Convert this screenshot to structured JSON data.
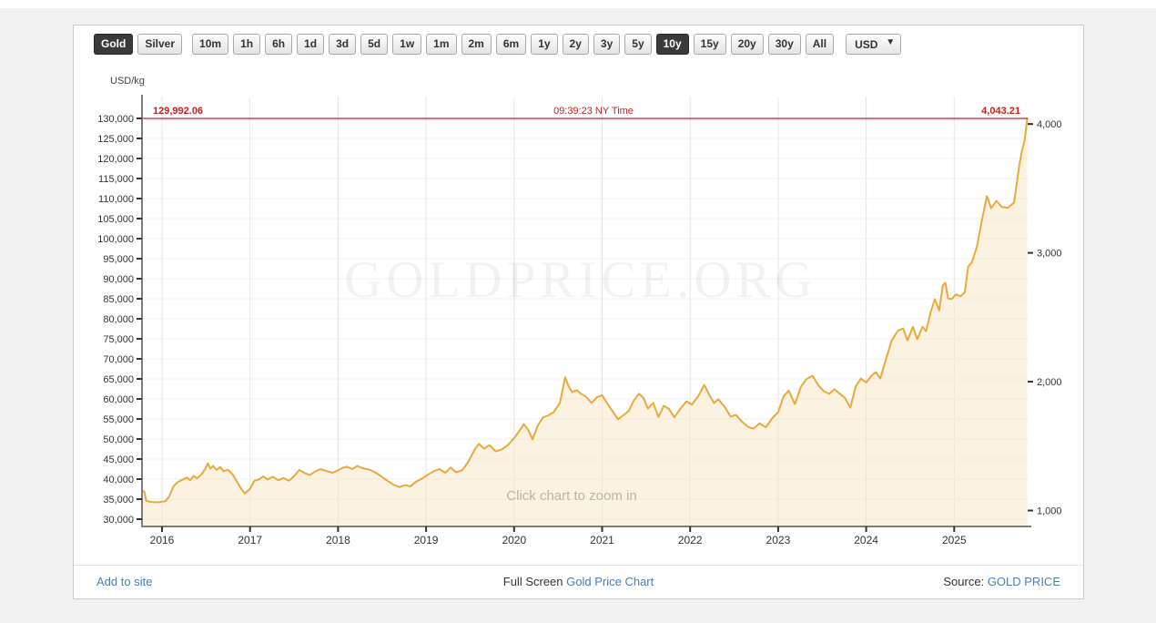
{
  "toolbar": {
    "asset_buttons": [
      {
        "label": "Gold",
        "active": true
      },
      {
        "label": "Silver",
        "active": false
      }
    ],
    "period_buttons": [
      {
        "label": "10m",
        "active": false
      },
      {
        "label": "1h",
        "active": false
      },
      {
        "label": "6h",
        "active": false
      },
      {
        "label": "1d",
        "active": false
      },
      {
        "label": "3d",
        "active": false
      },
      {
        "label": "5d",
        "active": false
      },
      {
        "label": "1w",
        "active": false
      },
      {
        "label": "1m",
        "active": false
      },
      {
        "label": "2m",
        "active": false
      },
      {
        "label": "6m",
        "active": false
      },
      {
        "label": "1y",
        "active": false
      },
      {
        "label": "2y",
        "active": false
      },
      {
        "label": "3y",
        "active": false
      },
      {
        "label": "5y",
        "active": false
      },
      {
        "label": "10y",
        "active": true
      },
      {
        "label": "15y",
        "active": false
      },
      {
        "label": "20y",
        "active": false
      },
      {
        "label": "30y",
        "active": false
      },
      {
        "label": "All",
        "active": false
      }
    ],
    "currency": {
      "selected": "USD",
      "options": [
        "USD"
      ]
    }
  },
  "chart_data": {
    "type": "area",
    "unit_label": "USD/kg",
    "watermark": "GOLDPRICE.ORG",
    "hint": "Click chart to zoom in",
    "x_axis": {
      "tick_years": [
        2016,
        2017,
        2018,
        2019,
        2020,
        2021,
        2022,
        2023,
        2024,
        2025
      ],
      "range": [
        2015.77,
        2025.84
      ]
    },
    "y_left": {
      "min": 30000,
      "max": 130000,
      "step": 5000
    },
    "y_right": {
      "ticks": [
        1000,
        2000,
        3000,
        4000
      ],
      "oz_per_kg": 32.1507
    },
    "current": {
      "price_kg": 129992.06,
      "price_kg_label": "129,992.06",
      "time_label": "09:39:23 NY Time",
      "price_oz_label": "4,043.21"
    },
    "series": [
      {
        "name": "Gold price USD/kg",
        "points": [
          [
            2015.77,
            37300
          ],
          [
            2015.8,
            36800
          ],
          [
            2015.82,
            34600
          ],
          [
            2015.88,
            34300
          ],
          [
            2015.96,
            34200
          ],
          [
            2016.04,
            34500
          ],
          [
            2016.08,
            35600
          ],
          [
            2016.13,
            38200
          ],
          [
            2016.18,
            39300
          ],
          [
            2016.24,
            39900
          ],
          [
            2016.28,
            40400
          ],
          [
            2016.32,
            39700
          ],
          [
            2016.36,
            40800
          ],
          [
            2016.4,
            40200
          ],
          [
            2016.45,
            41200
          ],
          [
            2016.49,
            42500
          ],
          [
            2016.52,
            43900
          ],
          [
            2016.55,
            42600
          ],
          [
            2016.58,
            43300
          ],
          [
            2016.62,
            42300
          ],
          [
            2016.66,
            43000
          ],
          [
            2016.7,
            42000
          ],
          [
            2016.75,
            42300
          ],
          [
            2016.8,
            41200
          ],
          [
            2016.86,
            39000
          ],
          [
            2016.9,
            37600
          ],
          [
            2016.94,
            36400
          ],
          [
            2017.0,
            37600
          ],
          [
            2017.05,
            39600
          ],
          [
            2017.1,
            39900
          ],
          [
            2017.15,
            40700
          ],
          [
            2017.2,
            39900
          ],
          [
            2017.26,
            40600
          ],
          [
            2017.32,
            39700
          ],
          [
            2017.38,
            40300
          ],
          [
            2017.44,
            39600
          ],
          [
            2017.5,
            40700
          ],
          [
            2017.56,
            42300
          ],
          [
            2017.62,
            41500
          ],
          [
            2017.68,
            41000
          ],
          [
            2017.74,
            41900
          ],
          [
            2017.8,
            42500
          ],
          [
            2017.87,
            42000
          ],
          [
            2017.94,
            41600
          ],
          [
            2018.0,
            42200
          ],
          [
            2018.05,
            42800
          ],
          [
            2018.1,
            43100
          ],
          [
            2018.16,
            42500
          ],
          [
            2018.22,
            43300
          ],
          [
            2018.28,
            42700
          ],
          [
            2018.35,
            42400
          ],
          [
            2018.42,
            41700
          ],
          [
            2018.49,
            40700
          ],
          [
            2018.56,
            39600
          ],
          [
            2018.63,
            38600
          ],
          [
            2018.7,
            38000
          ],
          [
            2018.76,
            38500
          ],
          [
            2018.82,
            38200
          ],
          [
            2018.89,
            39400
          ],
          [
            2018.96,
            40200
          ],
          [
            2019.02,
            41100
          ],
          [
            2019.09,
            42000
          ],
          [
            2019.15,
            42500
          ],
          [
            2019.22,
            41600
          ],
          [
            2019.28,
            42900
          ],
          [
            2019.34,
            41700
          ],
          [
            2019.41,
            42200
          ],
          [
            2019.48,
            44300
          ],
          [
            2019.55,
            47300
          ],
          [
            2019.6,
            48800
          ],
          [
            2019.66,
            47600
          ],
          [
            2019.72,
            48500
          ],
          [
            2019.79,
            46900
          ],
          [
            2019.86,
            47400
          ],
          [
            2019.93,
            48500
          ],
          [
            2020.0,
            50200
          ],
          [
            2020.06,
            52000
          ],
          [
            2020.11,
            53700
          ],
          [
            2020.16,
            52300
          ],
          [
            2020.21,
            49900
          ],
          [
            2020.27,
            53400
          ],
          [
            2020.33,
            55400
          ],
          [
            2020.39,
            55900
          ],
          [
            2020.45,
            56700
          ],
          [
            2020.52,
            59000
          ],
          [
            2020.58,
            65400
          ],
          [
            2020.62,
            63100
          ],
          [
            2020.66,
            61700
          ],
          [
            2020.71,
            62200
          ],
          [
            2020.76,
            61300
          ],
          [
            2020.82,
            60500
          ],
          [
            2020.88,
            59000
          ],
          [
            2020.94,
            60400
          ],
          [
            2021.0,
            60900
          ],
          [
            2021.06,
            58800
          ],
          [
            2021.12,
            56900
          ],
          [
            2021.18,
            54900
          ],
          [
            2021.24,
            55900
          ],
          [
            2021.3,
            56900
          ],
          [
            2021.36,
            59600
          ],
          [
            2021.42,
            61300
          ],
          [
            2021.47,
            60300
          ],
          [
            2021.52,
            57600
          ],
          [
            2021.58,
            59000
          ],
          [
            2021.64,
            55500
          ],
          [
            2021.7,
            58300
          ],
          [
            2021.76,
            57500
          ],
          [
            2021.82,
            55400
          ],
          [
            2021.89,
            57600
          ],
          [
            2021.96,
            59400
          ],
          [
            2022.02,
            58600
          ],
          [
            2022.09,
            60600
          ],
          [
            2022.16,
            63500
          ],
          [
            2022.22,
            60900
          ],
          [
            2022.27,
            59000
          ],
          [
            2022.32,
            59900
          ],
          [
            2022.39,
            58100
          ],
          [
            2022.46,
            55600
          ],
          [
            2022.52,
            56000
          ],
          [
            2022.59,
            54300
          ],
          [
            2022.66,
            53000
          ],
          [
            2022.72,
            52600
          ],
          [
            2022.79,
            53900
          ],
          [
            2022.86,
            52900
          ],
          [
            2022.93,
            55100
          ],
          [
            2023.0,
            56700
          ],
          [
            2023.06,
            60600
          ],
          [
            2023.12,
            62100
          ],
          [
            2023.19,
            58700
          ],
          [
            2023.26,
            63100
          ],
          [
            2023.32,
            64900
          ],
          [
            2023.39,
            65800
          ],
          [
            2023.46,
            63300
          ],
          [
            2023.52,
            61900
          ],
          [
            2023.58,
            61300
          ],
          [
            2023.64,
            62400
          ],
          [
            2023.7,
            61300
          ],
          [
            2023.76,
            60200
          ],
          [
            2023.82,
            57800
          ],
          [
            2023.88,
            63100
          ],
          [
            2023.94,
            65100
          ],
          [
            2024.0,
            64100
          ],
          [
            2024.06,
            65800
          ],
          [
            2024.11,
            66700
          ],
          [
            2024.16,
            65100
          ],
          [
            2024.22,
            69600
          ],
          [
            2024.29,
            74600
          ],
          [
            2024.36,
            77000
          ],
          [
            2024.42,
            77600
          ],
          [
            2024.47,
            74600
          ],
          [
            2024.53,
            78000
          ],
          [
            2024.58,
            74900
          ],
          [
            2024.64,
            78000
          ],
          [
            2024.68,
            76900
          ],
          [
            2024.73,
            81500
          ],
          [
            2024.78,
            84900
          ],
          [
            2024.83,
            82100
          ],
          [
            2024.87,
            88300
          ],
          [
            2024.9,
            89000
          ],
          [
            2024.93,
            85100
          ],
          [
            2024.97,
            84900
          ],
          [
            2025.02,
            86100
          ],
          [
            2025.07,
            85600
          ],
          [
            2025.12,
            86600
          ],
          [
            2025.16,
            93100
          ],
          [
            2025.2,
            94000
          ],
          [
            2025.26,
            98100
          ],
          [
            2025.31,
            104100
          ],
          [
            2025.37,
            110600
          ],
          [
            2025.42,
            107600
          ],
          [
            2025.48,
            109400
          ],
          [
            2025.54,
            107900
          ],
          [
            2025.61,
            107700
          ],
          [
            2025.68,
            109000
          ],
          [
            2025.74,
            118500
          ],
          [
            2025.77,
            121900
          ],
          [
            2025.8,
            124600
          ],
          [
            2025.83,
            129992
          ]
        ]
      }
    ]
  },
  "footer": {
    "add_to_site": "Add to site",
    "full_screen_prefix": "Full Screen ",
    "chart_link": "Gold Price Chart",
    "source_prefix": "Source: ",
    "source_link": "GOLD PRICE"
  },
  "colors": {
    "line": "#E9A93C",
    "fill": "#F7E6C5",
    "price_line": "#C62222",
    "grid_v": "#e6e6e6",
    "grid_h": "#f0f0f0",
    "axis": "#7d7d7d",
    "tick": "#333333",
    "link": "#4A7EB5",
    "active_button_bg": "#3A3A3A"
  }
}
